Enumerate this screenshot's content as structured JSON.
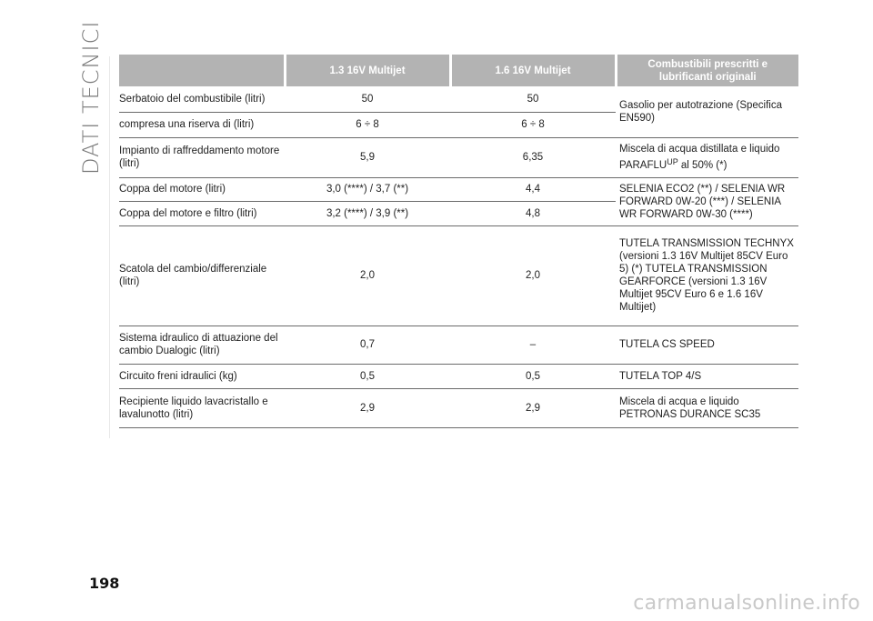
{
  "section_title": "DATI TECNICI",
  "page_number": "198",
  "watermark": "carmanualsonline.info",
  "table": {
    "headers": [
      "",
      "1.3 16V Multijet",
      "1.6 16V Multijet",
      "Combustibili prescritti e lubrificanti originali"
    ],
    "rows": [
      {
        "label": "Serbatoio del combustibile (litri)",
        "v1": "50",
        "v2": "50",
        "fluid": "Gasolio per autotrazione (Specifica EN590)"
      },
      {
        "label": "compresa una riserva di (litri)",
        "v1": "6 ÷ 8",
        "v2": "6 ÷ 8"
      },
      {
        "label": "Impianto di raffreddamento motore (litri)",
        "v1": "5,9",
        "v2": "6,35",
        "fluid_pre": "Miscela di acqua distillata e liquido PARAFLU",
        "fluid_sup": "UP",
        "fluid_post": " al 50% (*)"
      },
      {
        "label": "Coppa del motore (litri)",
        "v1": "3,0 (****) / 3,7 (**)",
        "v2": "4,4",
        "fluid": "SELENIA ECO2 (**) / SELENIA WR FORWARD 0W-20 (***) / SELENIA WR FORWARD 0W-30 (****)"
      },
      {
        "label": "Coppa del motore e filtro (litri)",
        "v1": "3,2 (****) / 3,9 (**)",
        "v2": "4,8"
      },
      {
        "label": "Scatola del cambio/differenziale (litri)",
        "v1": "2,0",
        "v2": "2,0",
        "fluid": "TUTELA TRANSMISSION TECHNYX (versioni 1.3 16V Multijet 85CV Euro 5) (*) TUTELA TRANSMISSION GEARFORCE (versioni 1.3 16V Multijet 95CV Euro 6 e 1.6 16V Multijet)"
      },
      {
        "label": "Sistema idraulico di attuazione del cambio Dualogic (litri)",
        "v1": "0,7",
        "v2": "–",
        "fluid": "TUTELA CS SPEED"
      },
      {
        "label": "Circuito freni idraulici (kg)",
        "v1": "0,5",
        "v2": "0,5",
        "fluid": "TUTELA TOP 4/S"
      },
      {
        "label": "Recipiente liquido lavacristallo e lavalunotto (litri)",
        "v1": "2,9",
        "v2": "2,9",
        "fluid": "Miscela di acqua e liquido PETRONAS DURANCE SC35"
      }
    ]
  }
}
